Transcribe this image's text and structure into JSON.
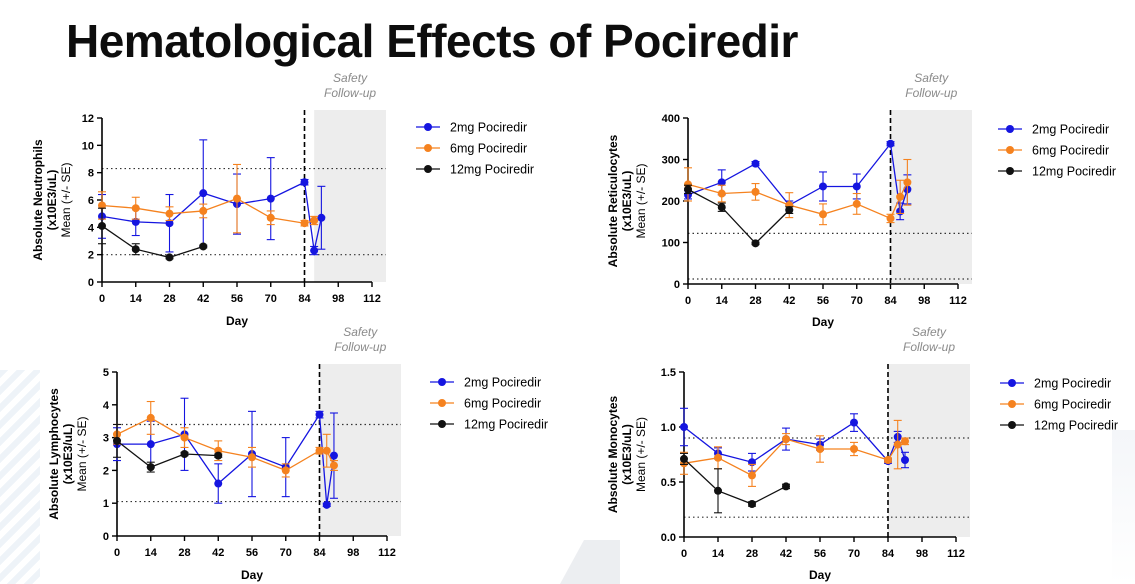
{
  "slide": {
    "title": "Hematological Effects of Pociredir"
  },
  "colors": {
    "dose_2mg": "#1515e0",
    "dose_6mg": "#f5821f",
    "dose_12mg": "#111111",
    "followup_bg": "#ededed"
  },
  "chart_data": [
    {
      "type": "line",
      "ylabel_lines": [
        "Absolute Neutrophils",
        "(x10E3/uL)",
        "Mean (+/- SE)"
      ],
      "xlabel": "Day",
      "xlim": [
        0,
        112
      ],
      "ylim": [
        0,
        12
      ],
      "xticks": [
        0,
        14,
        28,
        42,
        56,
        70,
        84,
        98,
        112
      ],
      "yticks": [
        0,
        2,
        4,
        6,
        8,
        10,
        12
      ],
      "reference_lines": [
        8.3,
        2.0
      ],
      "dosing_end_day": 84,
      "followup": {
        "start": 88,
        "label_lines": [
          "Safety",
          "Follow-up"
        ]
      },
      "series": [
        {
          "name": "2mg Pociredir",
          "color": "#1515e0",
          "x": [
            0,
            14,
            28,
            42,
            56,
            70,
            84,
            88,
            91
          ],
          "y": [
            4.8,
            4.4,
            4.3,
            6.5,
            5.7,
            6.1,
            7.3,
            2.3,
            4.7
          ],
          "err": [
            1.6,
            1.0,
            2.1,
            3.9,
            2.2,
            3.0,
            0.2,
            0.3,
            2.3
          ]
        },
        {
          "name": "6mg Pociredir",
          "color": "#f5821f",
          "x": [
            0,
            14,
            28,
            42,
            56,
            70,
            84,
            88
          ],
          "y": [
            5.6,
            5.4,
            5.0,
            5.2,
            6.1,
            4.7,
            4.3,
            4.5
          ],
          "err": [
            1.0,
            0.8,
            0.5,
            0.5,
            2.5,
            0.5,
            0.2,
            0.3
          ]
        },
        {
          "name": "12mg Pociredir",
          "color": "#111111",
          "x": [
            0,
            14,
            28,
            42
          ],
          "y": [
            4.1,
            2.4,
            1.8,
            2.6
          ],
          "err": [
            1.3,
            0.4,
            0.1,
            0.1
          ]
        }
      ]
    },
    {
      "type": "line",
      "ylabel_lines": [
        "Absolute Reticulocytes",
        "(x10E3/uL)",
        "Mean (+/- SE)"
      ],
      "xlabel": "Day",
      "xlim": [
        0,
        112
      ],
      "ylim": [
        0,
        400
      ],
      "xticks": [
        0,
        14,
        28,
        42,
        56,
        70,
        84,
        98,
        112
      ],
      "yticks": [
        0,
        100,
        200,
        300,
        400
      ],
      "reference_lines": [
        122,
        12
      ],
      "dosing_end_day": 84,
      "followup": {
        "start": 84,
        "label_lines": [
          "Safety",
          "Follow-up"
        ]
      },
      "series": [
        {
          "name": "2mg Pociredir",
          "color": "#1515e0",
          "x": [
            0,
            14,
            28,
            42,
            56,
            70,
            84,
            88,
            91
          ],
          "y": [
            215,
            245,
            290,
            190,
            235,
            235,
            338,
            175,
            228
          ],
          "err": [
            10,
            30,
            5,
            10,
            35,
            30,
            5,
            20,
            35
          ]
        },
        {
          "name": "6mg Pociredir",
          "color": "#f5821f",
          "x": [
            0,
            14,
            28,
            42,
            56,
            70,
            84,
            88,
            91
          ],
          "y": [
            240,
            218,
            222,
            190,
            168,
            193,
            158,
            210,
            245
          ],
          "err": [
            40,
            20,
            20,
            30,
            25,
            25,
            10,
            40,
            55
          ]
        },
        {
          "name": "12mg Pociredir",
          "color": "#111111",
          "x": [
            0,
            14,
            28,
            42
          ],
          "y": [
            228,
            185,
            98,
            178
          ],
          "err": [
            10,
            10,
            3,
            8
          ]
        }
      ]
    },
    {
      "type": "line",
      "ylabel_lines": [
        "Absolute Lymphocytes",
        "(x10E3/uL)",
        "Mean (+/- SE)"
      ],
      "xlabel": "Day",
      "xlim": [
        0,
        112
      ],
      "ylim": [
        0,
        5
      ],
      "xticks": [
        0,
        14,
        28,
        42,
        56,
        70,
        84,
        98,
        112
      ],
      "yticks": [
        0,
        1,
        2,
        3,
        4,
        5
      ],
      "reference_lines": [
        3.4,
        1.05
      ],
      "dosing_end_day": 84,
      "followup": {
        "start": 84,
        "label_lines": [
          "Safety",
          "Follow-up"
        ]
      },
      "series": [
        {
          "name": "2mg Pociredir",
          "color": "#1515e0",
          "x": [
            0,
            14,
            28,
            42,
            56,
            70,
            84,
            87,
            90
          ],
          "y": [
            2.8,
            2.8,
            3.1,
            1.6,
            2.5,
            2.1,
            3.7,
            0.95,
            2.45
          ],
          "err": [
            0.5,
            0.7,
            1.1,
            0.6,
            1.3,
            0.9,
            0.1,
            0.05,
            1.3
          ]
        },
        {
          "name": "6mg Pociredir",
          "color": "#f5821f",
          "x": [
            0,
            14,
            28,
            42,
            56,
            70,
            84,
            87,
            90
          ],
          "y": [
            3.1,
            3.6,
            3.0,
            2.6,
            2.4,
            2.0,
            2.6,
            2.6,
            2.15
          ],
          "err": [
            0.3,
            0.5,
            0.3,
            0.3,
            0.3,
            0.2,
            0.1,
            0.5,
            0.15
          ]
        },
        {
          "name": "12mg Pociredir",
          "color": "#111111",
          "x": [
            0,
            14,
            28,
            42
          ],
          "y": [
            2.9,
            2.1,
            2.5,
            2.45
          ],
          "err": [
            0.5,
            0.15,
            0.05,
            0.05
          ]
        }
      ]
    },
    {
      "type": "line",
      "ylabel_lines": [
        "Absolute Monocytes",
        "(x10E3/uL)",
        "Mean (+/- SE)"
      ],
      "xlabel": "Day",
      "xlim": [
        0,
        112
      ],
      "ylim": [
        0,
        1.5
      ],
      "xticks": [
        0,
        14,
        28,
        42,
        56,
        70,
        84,
        98,
        112
      ],
      "yticks": [
        0.0,
        0.5,
        1.0,
        1.5
      ],
      "ytick_labels": [
        "0.0",
        "0.5",
        "1.0",
        "1.5"
      ],
      "reference_lines": [
        0.9,
        0.18
      ],
      "dosing_end_day": 84,
      "followup": {
        "start": 84,
        "label_lines": [
          "Safety",
          "Follow-up"
        ]
      },
      "series": [
        {
          "name": "2mg Pociredir",
          "color": "#1515e0",
          "x": [
            0,
            14,
            28,
            42,
            56,
            70,
            84,
            88,
            91
          ],
          "y": [
            1.0,
            0.76,
            0.68,
            0.89,
            0.84,
            1.04,
            0.69,
            0.91,
            0.7
          ],
          "err": [
            0.17,
            0.05,
            0.08,
            0.1,
            0.05,
            0.08,
            0.02,
            0.05,
            0.07
          ]
        },
        {
          "name": "6mg Pociredir",
          "color": "#f5821f",
          "x": [
            0,
            14,
            28,
            42,
            56,
            70,
            84,
            88,
            91
          ],
          "y": [
            0.67,
            0.72,
            0.56,
            0.89,
            0.8,
            0.8,
            0.7,
            0.84,
            0.87
          ],
          "err": [
            0.1,
            0.1,
            0.1,
            0.05,
            0.12,
            0.06,
            0.02,
            0.22,
            0.03
          ]
        },
        {
          "name": "12mg Pociredir",
          "color": "#111111",
          "x": [
            0,
            14,
            28,
            42
          ],
          "y": [
            0.71,
            0.42,
            0.3,
            0.46
          ],
          "err": [
            0.05,
            0.2,
            0.02,
            0.02
          ]
        }
      ]
    }
  ]
}
